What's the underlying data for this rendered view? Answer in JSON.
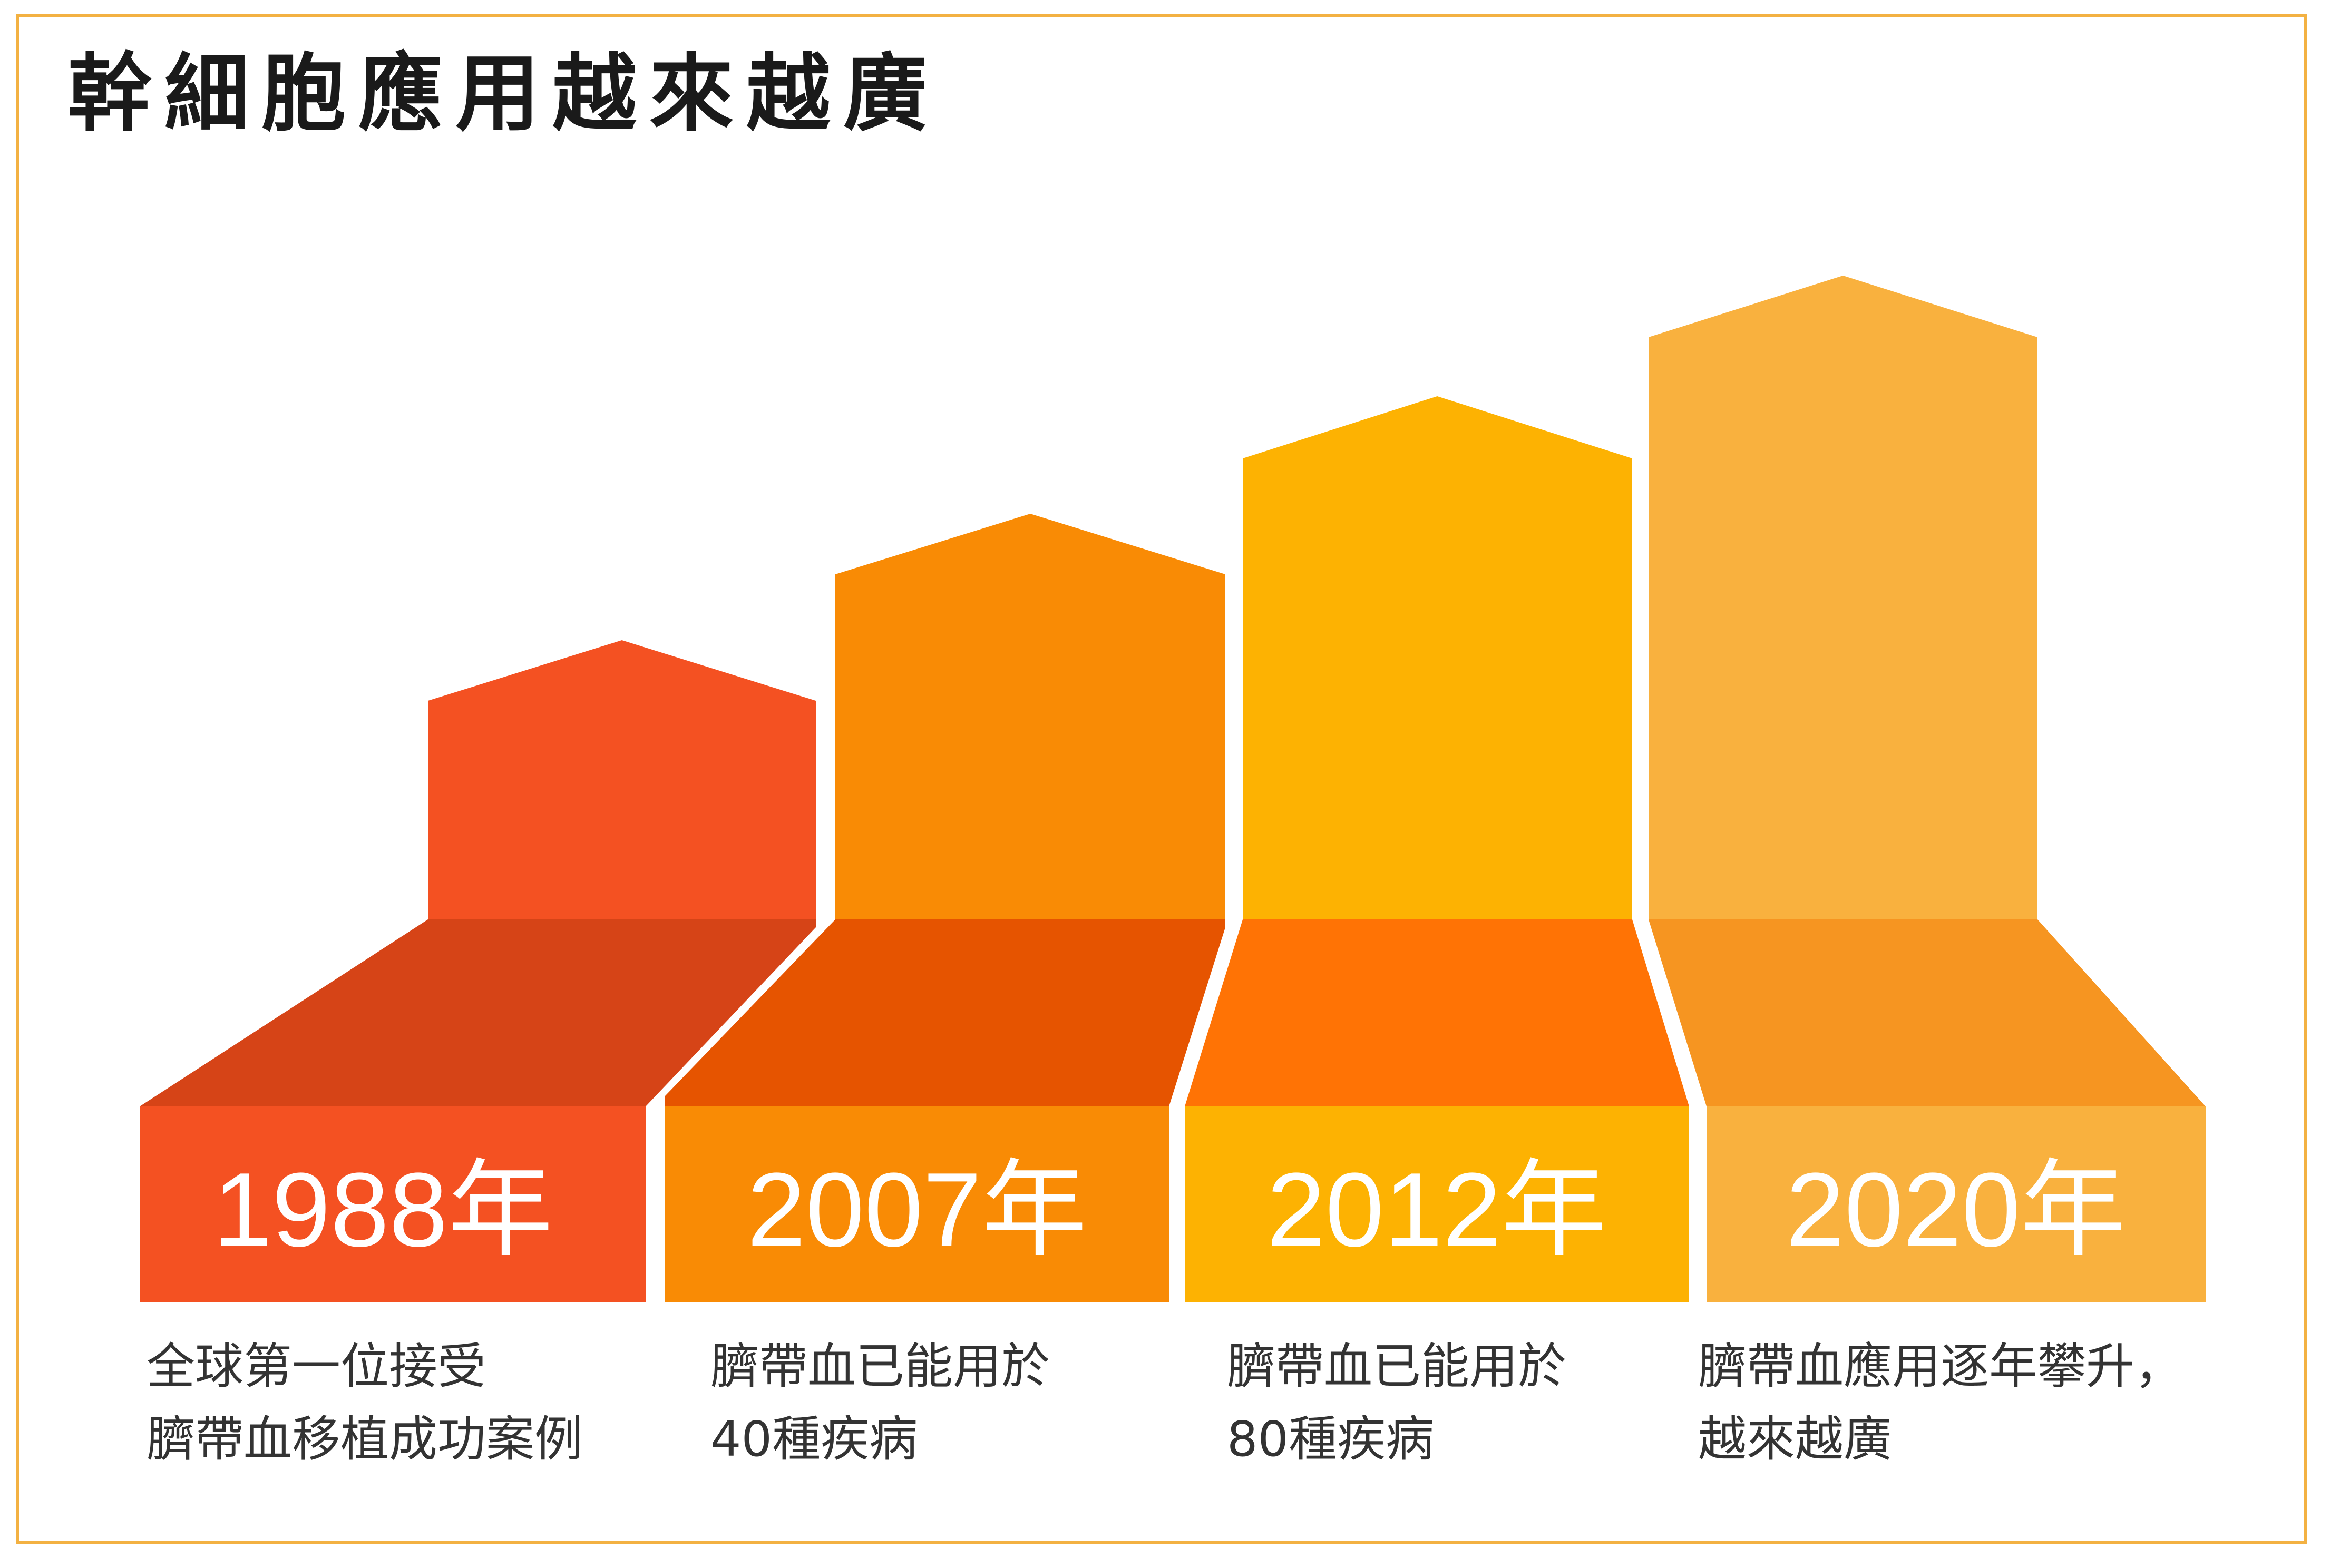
{
  "title": "幹細胞應用越來越廣",
  "milestones": [
    {
      "year": "1988年",
      "line1": "全球第一位接受",
      "line2": "臍帶血移植成功案例",
      "top_color": "#F45122",
      "floor_color": "#D64417",
      "base_color": "#F45122"
    },
    {
      "year": "2007年",
      "line1": "臍帶血已能用於",
      "line2": "40種疾病",
      "top_color": "#F98B05",
      "floor_color": "#E65400",
      "base_color": "#F98B05"
    },
    {
      "year": "2012年",
      "line1": "臍帶血已能用於",
      "line2": "80種疾病",
      "top_color": "#FDB202",
      "floor_color": "#FF7305",
      "base_color": "#FDB202"
    },
    {
      "year": "2020年",
      "line1": "臍帶血應用逐年攀升，",
      "line2": "越來越廣",
      "top_color": "#F9B13E",
      "floor_color": "#F69521",
      "base_color": "#F9B13E"
    }
  ]
}
